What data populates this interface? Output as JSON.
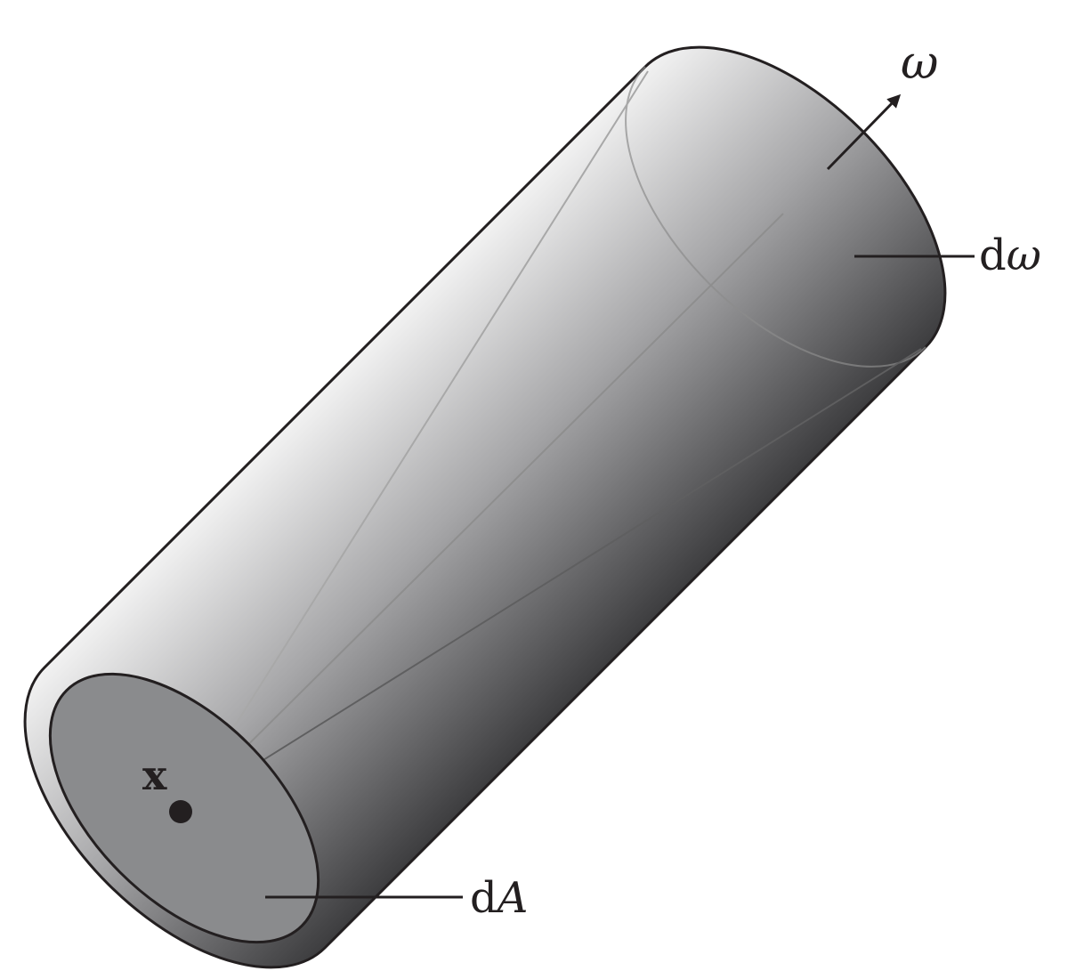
{
  "labels": {
    "omega": "ω",
    "d_omega_d": "d",
    "d_omega_omega": "ω",
    "point_x": "x",
    "d_area_d": "d",
    "d_area_a": "A"
  },
  "colors": {
    "outline": "#231f20",
    "end_cap_fill": "#8a8b8d",
    "body_light": "#f2f2f2",
    "body_dark": "#3a3a3c",
    "inner_lines": "#9a9a9a"
  }
}
